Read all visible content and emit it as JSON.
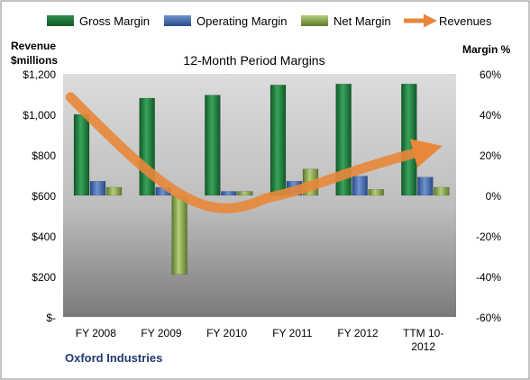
{
  "chart_data": {
    "type": "bar",
    "title": "12-Month Period Margins",
    "company": "Oxford Industries",
    "left_axis": {
      "label_line1": "Revenue",
      "label_line2": "$millions",
      "range": [
        0,
        1200
      ],
      "ticks": [
        "$-",
        "$200",
        "$400",
        "$600",
        "$800",
        "$1,000",
        "$1,200"
      ]
    },
    "right_axis": {
      "label": "Margin %",
      "range": [
        -60,
        60
      ],
      "ticks": [
        "-60%",
        "-40%",
        "-20%",
        "0%",
        "20%",
        "40%",
        "60%"
      ]
    },
    "categories": [
      [
        "FY 2008"
      ],
      [
        "FY 2009"
      ],
      [
        "FY 2010"
      ],
      [
        "FY 2011"
      ],
      [
        "FY 2012"
      ],
      [
        "TTM 10-",
        "2012"
      ]
    ],
    "series": [
      {
        "name": "Gross Margin",
        "axis": "right",
        "color": "#1e7a3c",
        "values": [
          40,
          48,
          49.5,
          54.5,
          55,
          55
        ]
      },
      {
        "name": "Operating Margin",
        "axis": "right",
        "color": "#3f6ab4",
        "values": [
          7,
          4,
          2,
          7,
          9.5,
          9
        ]
      },
      {
        "name": "Net Margin",
        "axis": "right",
        "color": "#8fae4f",
        "values": [
          4,
          -39,
          2,
          13,
          3,
          4
        ]
      }
    ],
    "trend": {
      "name": "Revenues",
      "type": "arrow",
      "color": "#e8873a"
    },
    "grid": false,
    "legend_position": "top"
  }
}
